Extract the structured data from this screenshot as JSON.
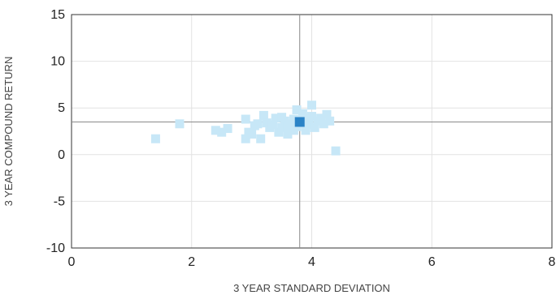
{
  "chart_data": {
    "type": "scatter",
    "xlabel": "3 YEAR STANDARD DEVIATION",
    "ylabel": "3 YEAR COMPOUND RETURN",
    "xlim": [
      0,
      8
    ],
    "ylim": [
      -10,
      15
    ],
    "xticks": [
      0,
      2,
      4,
      6,
      8
    ],
    "yticks": [
      -10,
      -5,
      0,
      5,
      10,
      15
    ],
    "xtick_labels": [
      "0",
      "2",
      "4",
      "6",
      "8"
    ],
    "ytick_labels": [
      "-10",
      "-5",
      "0",
      "5",
      "10",
      "15"
    ],
    "grid": true,
    "reference_lines": {
      "x": 3.8,
      "y": 3.5
    },
    "series": [
      {
        "color": "#c7e7f7",
        "points": [
          [
            1.4,
            1.7
          ],
          [
            1.8,
            3.3
          ],
          [
            2.4,
            2.6
          ],
          [
            2.5,
            2.4
          ],
          [
            2.6,
            2.8
          ],
          [
            2.9,
            3.8
          ],
          [
            2.9,
            1.7
          ],
          [
            2.95,
            2.4
          ],
          [
            3.0,
            2.2
          ],
          [
            3.05,
            3.1
          ],
          [
            3.1,
            3.3
          ],
          [
            3.15,
            1.7
          ],
          [
            3.2,
            4.2
          ],
          [
            3.25,
            3.4
          ],
          [
            3.3,
            2.9
          ],
          [
            3.35,
            3.2
          ],
          [
            3.4,
            3.9
          ],
          [
            3.45,
            2.4
          ],
          [
            3.5,
            4.0
          ],
          [
            3.5,
            2.9
          ],
          [
            3.55,
            3.6
          ],
          [
            3.6,
            3.1
          ],
          [
            3.6,
            2.2
          ],
          [
            3.65,
            3.3
          ],
          [
            3.7,
            3.8
          ],
          [
            3.7,
            2.6
          ],
          [
            3.75,
            4.8
          ],
          [
            3.75,
            3.0
          ],
          [
            3.85,
            4.4
          ],
          [
            3.85,
            3.4
          ],
          [
            3.9,
            2.6
          ],
          [
            3.9,
            3.9
          ],
          [
            3.95,
            3.2
          ],
          [
            4.0,
            5.3
          ],
          [
            4.0,
            4.1
          ],
          [
            4.05,
            2.9
          ],
          [
            4.1,
            3.6
          ],
          [
            4.15,
            3.9
          ],
          [
            4.2,
            3.3
          ],
          [
            4.25,
            4.3
          ],
          [
            4.3,
            3.6
          ],
          [
            4.4,
            0.4
          ]
        ]
      },
      {
        "color": "#2b83c6",
        "points": [
          [
            3.8,
            3.5
          ]
        ]
      }
    ]
  }
}
